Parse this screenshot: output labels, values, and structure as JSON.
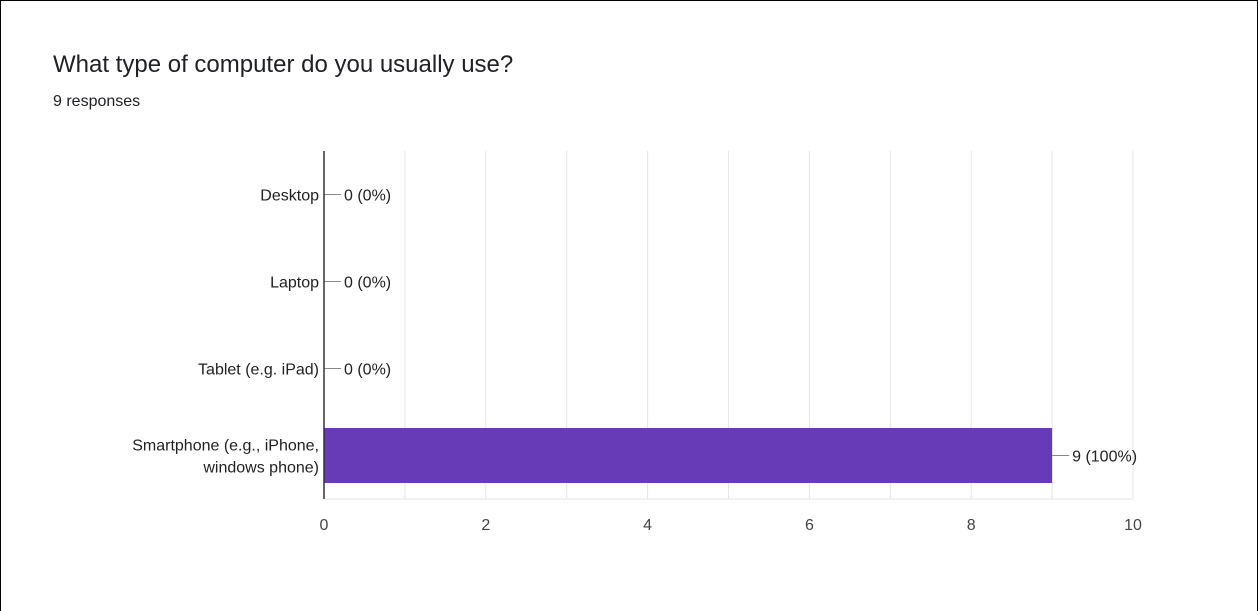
{
  "question": {
    "title": "What type of computer do you usually use?",
    "responses": "9 responses"
  },
  "colors": {
    "bar": "#673ab7",
    "grid": "#e6e6e6",
    "axis": "#333333",
    "text": "#212121",
    "tick_text": "#444444"
  },
  "chart_data": {
    "type": "bar",
    "orientation": "horizontal",
    "categories": [
      [
        "Desktop"
      ],
      [
        "Laptop"
      ],
      [
        "Tablet (e.g. iPad)"
      ],
      [
        "Smartphone (e.g., iPhone,",
        "windows phone)"
      ]
    ],
    "values": [
      0,
      0,
      0,
      9
    ],
    "data_labels": [
      "0 (0%)",
      "0 (0%)",
      "0 (0%)",
      "9 (100%)"
    ],
    "xlim": [
      0,
      10
    ],
    "xticks": [
      0,
      2,
      4,
      6,
      8,
      10
    ],
    "xlabel": "",
    "ylabel": "",
    "grid": true,
    "legend": "none"
  }
}
